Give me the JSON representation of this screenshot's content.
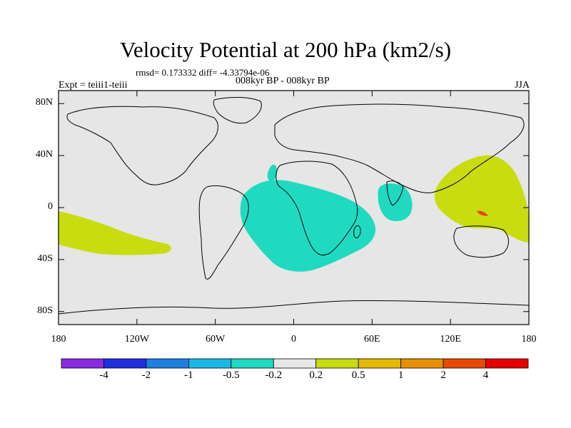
{
  "title": "Velocity Potential at 200 hPa (km2/s)",
  "stats_line": "rmsd= 0.173332 diff= -4.33794e-06",
  "subtitle": "008kyr BP - 008kyr BP",
  "left_label": "Expt = teiii1-teiii",
  "right_label": "JJA",
  "axes": {
    "lat_ticks": [
      {
        "label": "80N",
        "value": 80
      },
      {
        "label": "40N",
        "value": 40
      },
      {
        "label": "0",
        "value": 0
      },
      {
        "label": "40S",
        "value": -40
      },
      {
        "label": "80S",
        "value": -80
      }
    ],
    "lon_ticks": [
      {
        "label": "180",
        "value": -180
      },
      {
        "label": "120W",
        "value": -120
      },
      {
        "label": "60W",
        "value": -60
      },
      {
        "label": "0",
        "value": 0
      },
      {
        "label": "60E",
        "value": 60
      },
      {
        "label": "120E",
        "value": 120
      },
      {
        "label": "180",
        "value": 180
      }
    ],
    "lat_range": [
      -90,
      90
    ],
    "lon_range": [
      -180,
      180
    ]
  },
  "colorbar": {
    "colors": [
      "#8a2be2",
      "#1e2ee0",
      "#1f7fe0",
      "#19b8e8",
      "#1fd9c0",
      "#e6e6e6",
      "#c8dc10",
      "#e6b800",
      "#e69000",
      "#e64a00",
      "#e60000"
    ],
    "labels": [
      "-4",
      "-2",
      "-1",
      "-0.5",
      "-0.2",
      "0.2",
      "0.5",
      "1",
      "2",
      "4"
    ]
  },
  "colors": {
    "background": "#e6e6e6",
    "negative_region": "#1fd9c0",
    "positive_region": "#c8dc10",
    "small_positive_peak": "#e64a00"
  },
  "regions": [
    {
      "name": "atlantic-africa-negative",
      "level": "-0.5 to -0.2"
    },
    {
      "name": "indian-ocean-negative",
      "level": "-0.5 to -0.2"
    },
    {
      "name": "west-pacific-positive",
      "level": "0.2 to 0.5"
    },
    {
      "name": "east-pacific-positive",
      "level": "0.2 to 0.5"
    }
  ]
}
